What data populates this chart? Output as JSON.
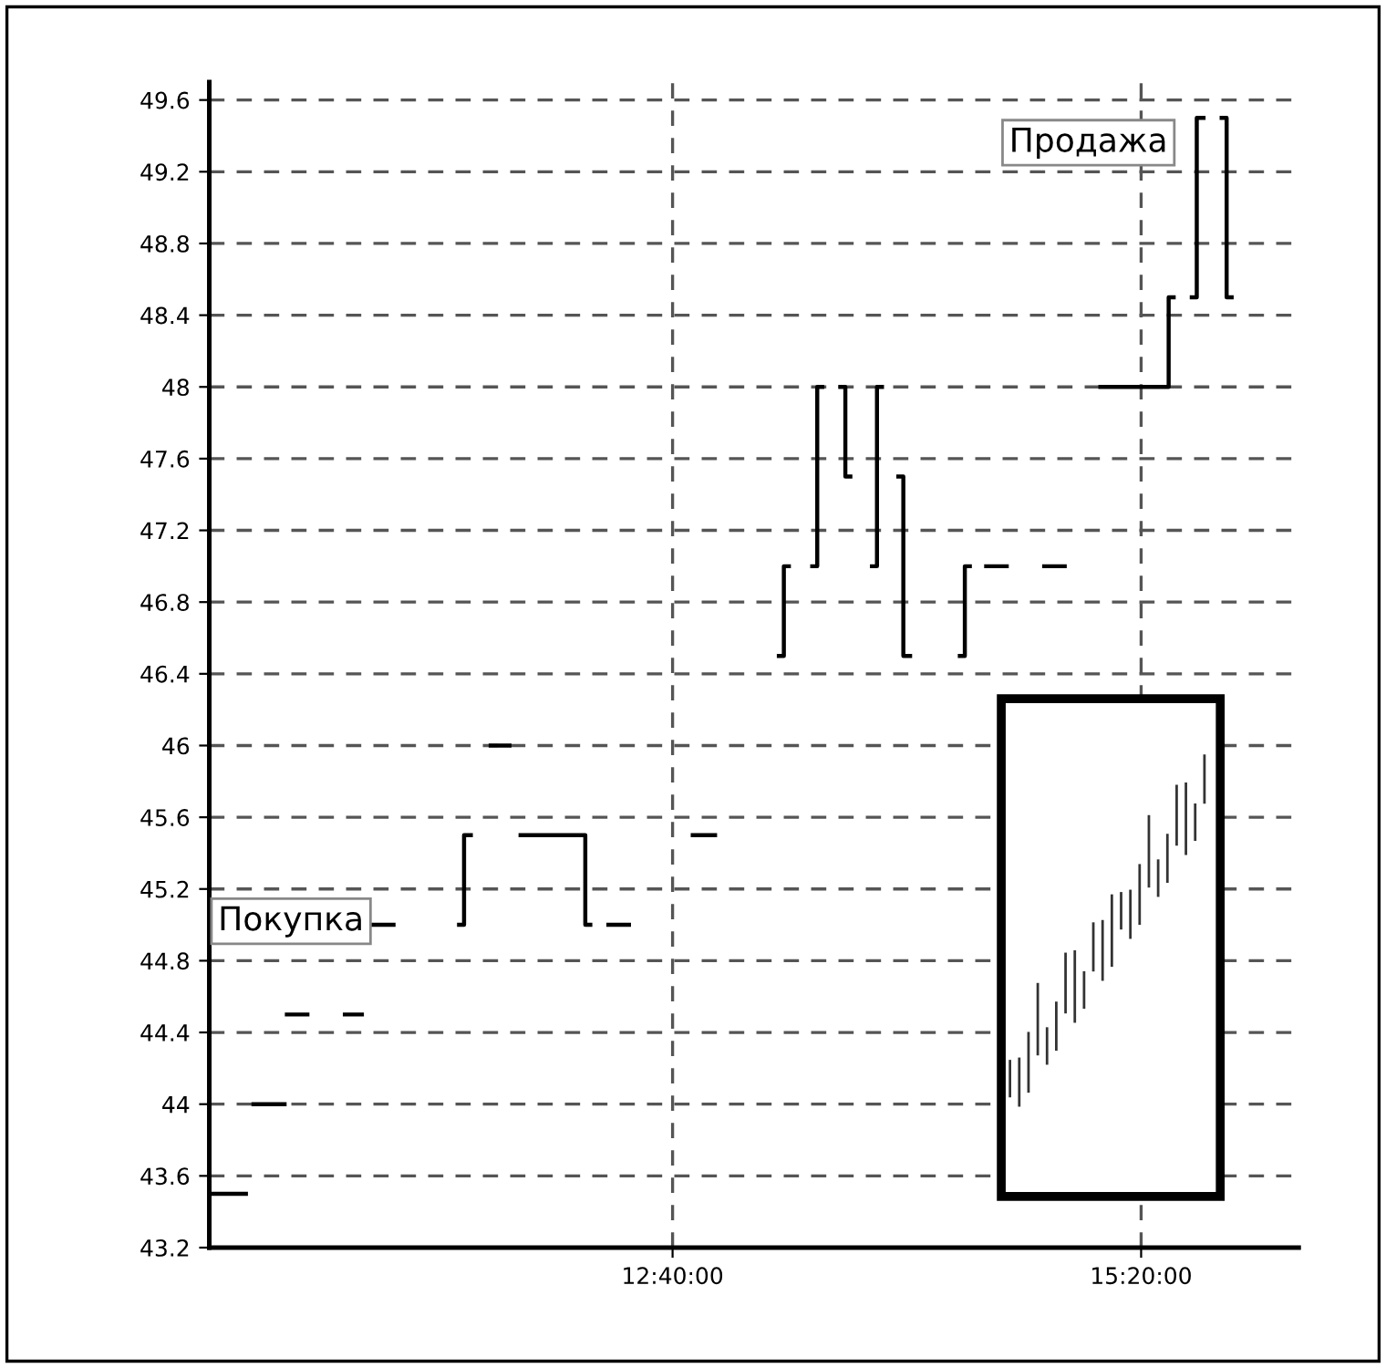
{
  "chart_data": {
    "type": "line",
    "x": [
      10.03,
      10.25,
      null,
      10.27,
      10.47,
      null,
      10.46,
      10.6,
      null,
      10.79,
      10.91,
      null,
      10.95,
      11.09,
      null,
      11.44,
      11.48,
      11.48,
      11.53,
      null,
      11.62,
      11.75,
      null,
      11.79,
      12.17,
      12.17,
      12.21,
      null,
      12.29,
      12.43,
      null,
      12.77,
      12.92,
      null,
      13.26,
      13.3,
      13.3,
      13.34,
      null,
      13.45,
      13.49,
      13.49,
      13.53,
      null,
      13.61,
      13.65,
      13.65,
      13.69,
      null,
      13.79,
      13.83,
      13.83,
      13.87,
      null,
      13.94,
      13.98,
      13.98,
      14.03,
      null,
      14.29,
      14.33,
      14.33,
      14.37,
      null,
      14.44,
      14.58,
      null,
      14.77,
      14.91,
      null,
      15.09,
      15.49,
      15.49,
      15.53,
      null,
      15.61,
      15.65,
      15.65,
      15.7,
      null,
      15.78,
      15.82,
      15.82,
      15.86
    ],
    "series": [
      {
        "color": "#000000",
        "values": [
          43.5,
          43.5,
          null,
          44.0,
          44.0,
          null,
          44.5,
          44.5,
          null,
          44.5,
          44.5,
          null,
          45.0,
          45.0,
          null,
          45.0,
          45.0,
          45.5,
          45.5,
          null,
          46.0,
          46.0,
          null,
          45.5,
          45.5,
          45.0,
          45.0,
          null,
          45.0,
          45.0,
          null,
          45.5,
          45.5,
          null,
          46.5,
          46.5,
          47.0,
          47.0,
          null,
          47.0,
          47.0,
          48.0,
          48.0,
          null,
          48.0,
          48.0,
          47.5,
          47.5,
          null,
          47.0,
          47.0,
          48.0,
          48.0,
          null,
          47.5,
          47.5,
          46.5,
          46.5,
          null,
          46.5,
          46.5,
          47.0,
          47.0,
          null,
          47.0,
          47.0,
          null,
          47.0,
          47.0,
          null,
          48.0,
          48.0,
          48.5,
          48.5,
          null,
          48.5,
          48.5,
          49.5,
          49.5,
          null,
          49.5,
          49.5,
          48.5,
          48.5
        ]
      }
    ],
    "xlim": [
      10.03,
      16.23
    ],
    "xticks": [
      {
        "value": 12.6667,
        "label": "12:40:00"
      },
      {
        "value": 15.3333,
        "label": "15:20:00"
      }
    ],
    "ylim": [
      43.2,
      49.7
    ],
    "yticks": [
      43.2,
      43.6,
      44,
      44.4,
      44.8,
      45.2,
      45.6,
      46,
      46.4,
      46.8,
      47.2,
      47.6,
      48,
      48.4,
      48.8,
      49.2,
      49.6
    ],
    "grid": true,
    "annotations": [
      "Покупка",
      "Продажа"
    ]
  }
}
